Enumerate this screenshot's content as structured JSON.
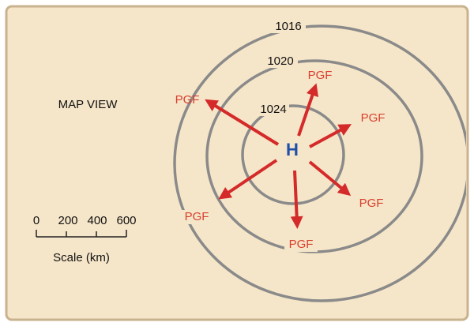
{
  "title": "MAP VIEW",
  "high": "H",
  "isobars": [
    {
      "label": 1016
    },
    {
      "label": 1020
    },
    {
      "label": 1024
    }
  ],
  "arrows": [
    {
      "label": "PGF"
    },
    {
      "label": "PGF"
    },
    {
      "label": "PGF"
    },
    {
      "label": "PGF"
    },
    {
      "label": "PGF"
    },
    {
      "label": "PGF"
    }
  ],
  "scale": {
    "ticks": [
      0,
      200,
      400,
      600
    ],
    "label": "Scale (km)"
  }
}
